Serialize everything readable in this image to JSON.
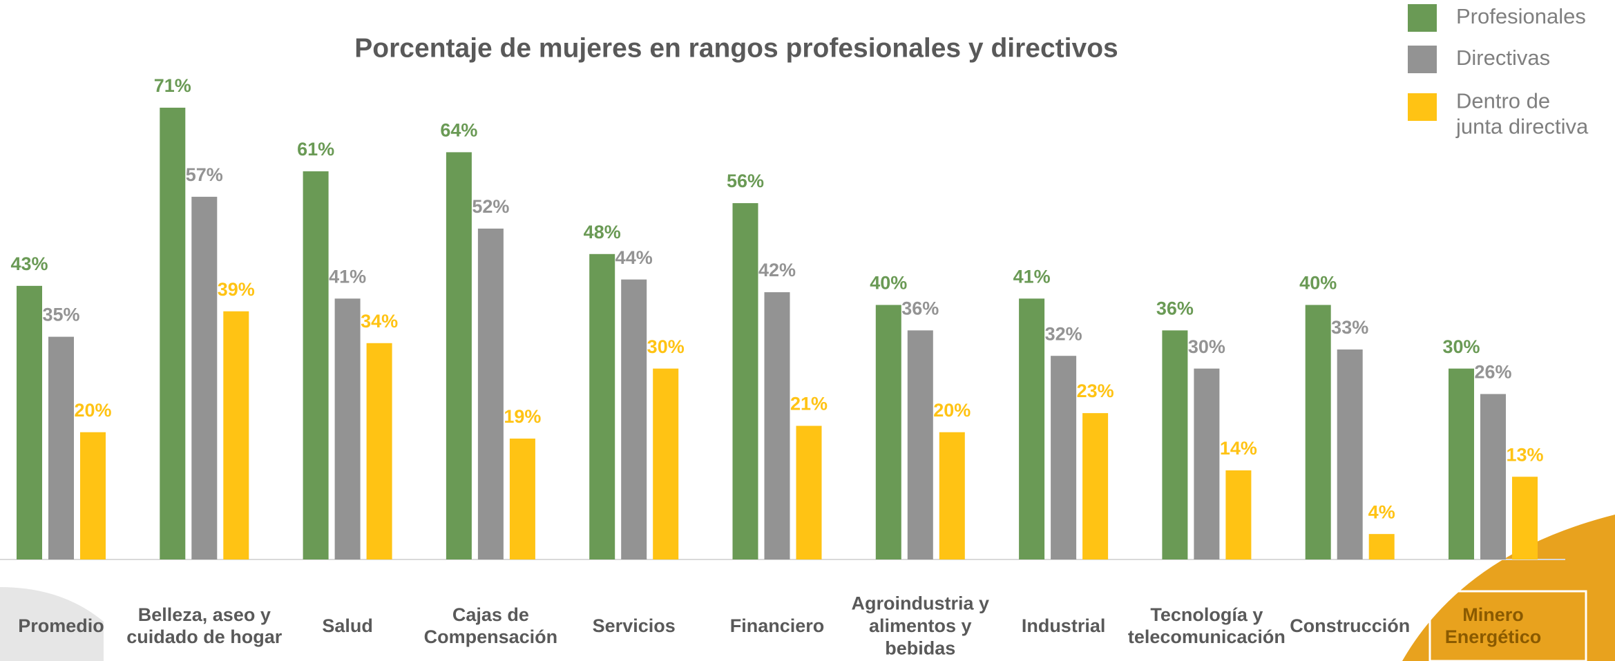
{
  "chart_data": {
    "type": "bar",
    "title": "Porcentaje de mujeres en rangos profesionales y directivos",
    "categories": [
      "Promedio",
      "Belleza, aseo y\ncuidado de hogar",
      "Salud",
      "Cajas de\nCompensación",
      "Servicios",
      "Financiero",
      "Agroindustria y\nalimentos y\nbebidas",
      "Industrial",
      "Tecnología y\ntelecomunicación",
      "Construcción",
      "Minero\nEnergético"
    ],
    "series": [
      {
        "name": "Profesionales",
        "color": "#6a9a55",
        "values": [
          43,
          71,
          61,
          64,
          48,
          56,
          40,
          41,
          36,
          40,
          30
        ],
        "value_labels": [
          "43%",
          "71%",
          "61%",
          "64%",
          "48%",
          "56%",
          "40%",
          "41%",
          "36%",
          "40%",
          "30%"
        ]
      },
      {
        "name": "Directivas",
        "color": "#939393",
        "values": [
          35,
          57,
          41,
          52,
          44,
          42,
          36,
          32,
          30,
          33,
          26
        ],
        "value_labels": [
          "35%",
          "57%",
          "41%",
          "52%",
          "44%",
          "42%",
          "36%",
          "32%",
          "30%",
          "33%",
          "26%"
        ]
      },
      {
        "name": "Dentro de\njunta directiva",
        "color": "#ffc314",
        "values": [
          20,
          39,
          34,
          19,
          30,
          21,
          20,
          23,
          14,
          4,
          13
        ],
        "value_labels": [
          "20%",
          "39%",
          "34%",
          "19%",
          "30%",
          "21%",
          "20%",
          "23%",
          "14%",
          "4%",
          "13%"
        ]
      }
    ],
    "ylim": [
      0,
      80
    ],
    "legend": "top-right"
  }
}
